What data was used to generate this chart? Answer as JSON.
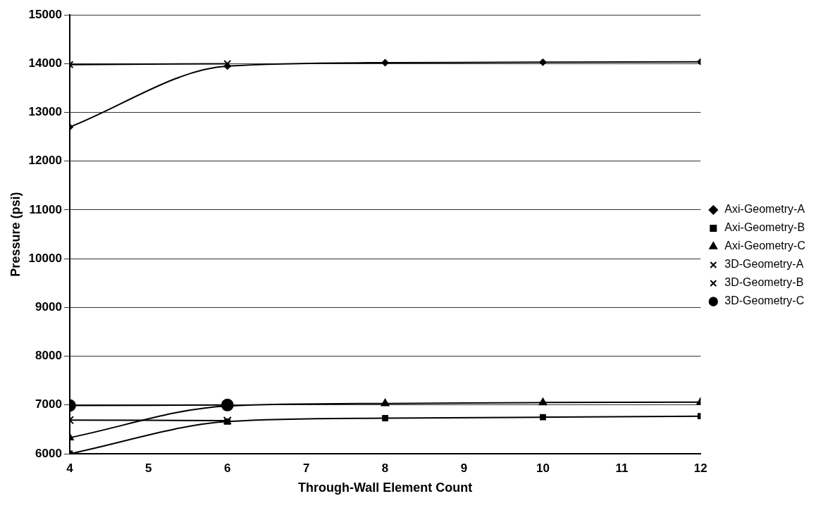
{
  "chart_data": {
    "type": "line",
    "xlabel": "Through-Wall Element Count",
    "ylabel": "Pressure (psi)",
    "xlim": [
      4,
      12
    ],
    "xticks": [
      4,
      5,
      6,
      7,
      8,
      9,
      10,
      11,
      12
    ],
    "ylim": [
      6000,
      15000
    ],
    "yticks": [
      6000,
      7000,
      8000,
      9000,
      10000,
      11000,
      12000,
      13000,
      14000,
      15000
    ],
    "grid": "y",
    "legend": "right",
    "series": [
      {
        "name": "Axi-Geometry-A",
        "color": "#000000",
        "marker": "diamond",
        "x": [
          4,
          6,
          8,
          10,
          12
        ],
        "values": [
          12700,
          13950,
          14020,
          14030,
          14040
        ]
      },
      {
        "name": "Axi-Geometry-B",
        "color": "#000000",
        "marker": "square",
        "x": [
          4,
          6,
          8,
          10,
          12
        ],
        "values": [
          6000,
          6660,
          6730,
          6750,
          6770
        ]
      },
      {
        "name": "Axi-Geometry-C",
        "color": "#000000",
        "marker": "triangle",
        "x": [
          4,
          6,
          8,
          10,
          12
        ],
        "values": [
          6330,
          6980,
          7030,
          7050,
          7060
        ]
      },
      {
        "name": "3D-Geometry-A",
        "color": "#000000",
        "marker": "cross",
        "x": [
          4,
          6
        ],
        "values": [
          13980,
          14000
        ]
      },
      {
        "name": "3D-Geometry-B",
        "color": "#000000",
        "marker": "cross",
        "x": [
          4,
          6
        ],
        "values": [
          6690,
          6680
        ]
      },
      {
        "name": "3D-Geometry-C",
        "color": "#000000",
        "marker": "circle",
        "x": [
          4,
          6
        ],
        "values": [
          6990,
          7000
        ]
      }
    ]
  }
}
